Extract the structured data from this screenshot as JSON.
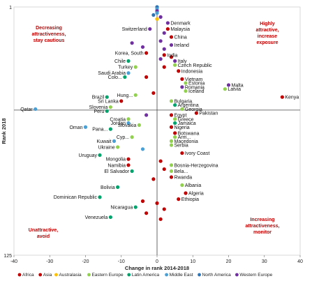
{
  "chart_data": {
    "type": "scatter",
    "xlabel": "Change in rank 2014-2018",
    "ylabel": "Rank 2018",
    "xlim": [
      -40,
      40
    ],
    "ylim": [
      1,
      125
    ],
    "y_inverted": true,
    "x_ticks": [
      -40,
      -30,
      -20,
      -10,
      0,
      10,
      20,
      30,
      40
    ],
    "y_ticks": [
      1,
      125
    ],
    "grid": false,
    "legend_position": "bottom",
    "colors": {
      "Africa": "#c00000",
      "Asia": "#c00000",
      "Australasia": "#ffc000",
      "Eastern Europe": "#92d050",
      "Latin America": "#00a36c",
      "Middle East": "#4a9fd5",
      "North America": "#2e75b6",
      "Western Europe": "#7030a0"
    },
    "legend": [
      {
        "region": "Africa",
        "text": "Africa"
      },
      {
        "region": "Asia",
        "text": "Asia"
      },
      {
        "region": "Australasia",
        "text": "Australasia"
      },
      {
        "region": "Eastern Europe",
        "text": "Eastern Europe"
      },
      {
        "region": "Latin America",
        "text": "Latin America"
      },
      {
        "region": "Middle East",
        "text": "Middle East"
      },
      {
        "region": "North America",
        "text": "North America"
      },
      {
        "region": "Western Europe",
        "text": "Western Europe"
      }
    ],
    "quadrant_labels": [
      {
        "lines": [
          "Decreasing",
          "attractiveness,",
          "stay cautious"
        ],
        "quadrant": "top-left"
      },
      {
        "lines": [
          "Highly",
          "attractive,",
          "increase",
          "exposure"
        ],
        "quadrant": "top-right"
      },
      {
        "lines": [
          "Unattractive,",
          "avoid"
        ],
        "quadrant": "bottom-left"
      },
      {
        "lines": [
          "Increasing",
          "attractiveness,",
          "monitor"
        ],
        "quadrant": "bottom-right"
      }
    ],
    "points": [
      {
        "x": 0,
        "y": 1,
        "region": "North America"
      },
      {
        "x": 0,
        "y": 2,
        "region": "Middle East"
      },
      {
        "x": 0,
        "y": 3,
        "region": "Western Europe"
      },
      {
        "x": 0,
        "y": 4,
        "region": "Middle East"
      },
      {
        "x": -1,
        "y": 5,
        "region": "North America"
      },
      {
        "x": 1,
        "y": 6,
        "region": "Western Europe"
      },
      {
        "x": 0,
        "y": 7,
        "region": "Australasia"
      },
      {
        "x": 3,
        "y": 9,
        "region": "Western Europe",
        "label": "Denmark"
      },
      {
        "x": 3,
        "y": 12,
        "region": "Asia",
        "label": "Malaysia"
      },
      {
        "x": -2,
        "y": 12,
        "region": "Western Europe",
        "label": "Switzerland"
      },
      {
        "x": 2,
        "y": 14,
        "region": "Western Europe"
      },
      {
        "x": 4,
        "y": 16,
        "region": "Asia",
        "label": "China"
      },
      {
        "x": 1,
        "y": 18,
        "region": "Western Europe"
      },
      {
        "x": 4,
        "y": 20,
        "region": "Western Europe",
        "label": "Ireland"
      },
      {
        "x": -7,
        "y": 19,
        "region": "Western Europe"
      },
      {
        "x": -4,
        "y": 21,
        "region": "Western Europe"
      },
      {
        "x": 2,
        "y": 22,
        "region": "Western Europe"
      },
      {
        "x": -3,
        "y": 24,
        "region": "Asia",
        "label": "Korea, South"
      },
      {
        "x": 2,
        "y": 25,
        "region": "Asia",
        "label": "India"
      },
      {
        "x": 4,
        "y": 26,
        "region": "Asia"
      },
      {
        "x": 1,
        "y": 27,
        "region": "Western Europe"
      },
      {
        "x": 5,
        "y": 28,
        "region": "Western Europe",
        "label": "Italy"
      },
      {
        "x": -8,
        "y": 28,
        "region": "Latin America",
        "label": "Chile"
      },
      {
        "x": 5,
        "y": 30,
        "region": "Eastern Europe",
        "label": "Czech Republic"
      },
      {
        "x": 2,
        "y": 31,
        "region": "Asia"
      },
      {
        "x": -6,
        "y": 31,
        "region": "Eastern Europe",
        "label": "Turkey"
      },
      {
        "x": 6,
        "y": 33,
        "region": "Asia",
        "label": "Indonesia"
      },
      {
        "x": -8,
        "y": 34,
        "region": "Middle East",
        "label": "Saudi Arabia"
      },
      {
        "x": -3,
        "y": 36,
        "region": "Asia"
      },
      {
        "x": -9,
        "y": 36,
        "region": "Latin America",
        "label": "Colo..."
      },
      {
        "x": 7,
        "y": 37,
        "region": "Asia",
        "label": "Vietnam"
      },
      {
        "x": 8,
        "y": 39,
        "region": "Eastern Europe",
        "label": "Estonia"
      },
      {
        "x": 20,
        "y": 40,
        "region": "Western Europe",
        "label": "Malta"
      },
      {
        "x": 7,
        "y": 41,
        "region": "Western Europe",
        "label": "Romania"
      },
      {
        "x": 19,
        "y": 42,
        "region": "Eastern Europe",
        "label": "Latvia"
      },
      {
        "x": 8,
        "y": 43,
        "region": "Eastern Europe",
        "label": "Iceland"
      },
      {
        "x": -1,
        "y": 44,
        "region": "Asia"
      },
      {
        "x": -6,
        "y": 45,
        "region": "Eastern Europe",
        "label": "Hung..."
      },
      {
        "x": 35,
        "y": 46,
        "region": "Africa",
        "label": "Kenya"
      },
      {
        "x": -14,
        "y": 46,
        "region": "Latin America",
        "label": "Brazil"
      },
      {
        "x": 4,
        "y": 48,
        "region": "Eastern Europe",
        "label": "Bulgaria"
      },
      {
        "x": -10,
        "y": 48,
        "region": "Asia",
        "label": "Sri Lanka"
      },
      {
        "x": 5,
        "y": 50,
        "region": "Latin America",
        "label": "Argentina"
      },
      {
        "x": -13,
        "y": 51,
        "region": "Eastern Europe",
        "label": "Slovenia"
      },
      {
        "x": -34,
        "y": 52,
        "region": "Middle East",
        "label": "Qatar"
      },
      {
        "x": 7,
        "y": 52,
        "region": "Eastern Europe",
        "label": "Georgia"
      },
      {
        "x": -14,
        "y": 53,
        "region": "Latin America",
        "label": "Peru"
      },
      {
        "x": 11,
        "y": 54,
        "region": "Asia",
        "label": "Pakistan"
      },
      {
        "x": 4,
        "y": 55,
        "region": "Africa",
        "label": "Egypt"
      },
      {
        "x": -3,
        "y": 55,
        "region": "Western Europe"
      },
      {
        "x": 5,
        "y": 57,
        "region": "Eastern Europe",
        "label": "Greece"
      },
      {
        "x": -8,
        "y": 57,
        "region": "Eastern Europe",
        "label": "Croatia"
      },
      {
        "x": 5,
        "y": 59,
        "region": "Latin America",
        "label": "Jamaica"
      },
      {
        "x": -8,
        "y": 59,
        "region": "Middle East",
        "label": "Jordan"
      },
      {
        "x": -5,
        "y": 60,
        "region": "Eastern Europe",
        "label": "Slovakia"
      },
      {
        "x": 4,
        "y": 61,
        "region": "Africa",
        "label": "Nigeria"
      },
      {
        "x": -20,
        "y": 61,
        "region": "Middle East",
        "label": "Oman"
      },
      {
        "x": -13,
        "y": 62,
        "region": "Latin America",
        "label": "Pana..."
      },
      {
        "x": 5,
        "y": 64,
        "region": "Africa",
        "label": "Botswana"
      },
      {
        "x": 5,
        "y": 66,
        "region": "Eastern Europe",
        "label": "Arm..."
      },
      {
        "x": -7,
        "y": 66,
        "region": "Eastern Europe",
        "label": "Cyp..."
      },
      {
        "x": 4,
        "y": 68,
        "region": "Eastern Europe",
        "label": "Macedonia"
      },
      {
        "x": -12,
        "y": 68,
        "region": "Middle East",
        "label": "Kuwait"
      },
      {
        "x": 4,
        "y": 70,
        "region": "Eastern Europe",
        "label": "Serbia"
      },
      {
        "x": -11,
        "y": 71,
        "region": "Eastern Europe",
        "label": "Ukraine"
      },
      {
        "x": -4,
        "y": 72,
        "region": "Middle East"
      },
      {
        "x": 7,
        "y": 74,
        "region": "Africa",
        "label": "Ivory Coast"
      },
      {
        "x": -16,
        "y": 75,
        "region": "Latin America",
        "label": "Uruguay"
      },
      {
        "x": -8,
        "y": 77,
        "region": "Asia",
        "label": "Mongolia"
      },
      {
        "x": 1,
        "y": 78,
        "region": "Africa"
      },
      {
        "x": -8,
        "y": 80,
        "region": "Africa",
        "label": "Namibia"
      },
      {
        "x": 4,
        "y": 80,
        "region": "Eastern Europe",
        "label": "Bosnia-Herzegovina"
      },
      {
        "x": 2,
        "y": 82,
        "region": "Africa"
      },
      {
        "x": -7,
        "y": 83,
        "region": "Latin America",
        "label": "El Salvador"
      },
      {
        "x": 4,
        "y": 83,
        "region": "Eastern Europe",
        "label": "Bela..."
      },
      {
        "x": 4,
        "y": 86,
        "region": "Africa",
        "label": "Rwanda"
      },
      {
        "x": -1,
        "y": 87,
        "region": "Africa"
      },
      {
        "x": 7,
        "y": 90,
        "region": "Eastern Europe",
        "label": "Albania"
      },
      {
        "x": -11,
        "y": 91,
        "region": "Latin America",
        "label": "Bolivia"
      },
      {
        "x": 8,
        "y": 94,
        "region": "Africa",
        "label": "Algeria"
      },
      {
        "x": -16,
        "y": 96,
        "region": "Latin America",
        "label": "Dominican Republic"
      },
      {
        "x": 6,
        "y": 97,
        "region": "Africa",
        "label": "Ethiopia"
      },
      {
        "x": -4,
        "y": 98,
        "region": "Africa"
      },
      {
        "x": -6,
        "y": 101,
        "region": "Latin America",
        "label": "Nicaragua"
      },
      {
        "x": -3,
        "y": 104,
        "region": "Africa"
      },
      {
        "x": -13,
        "y": 106,
        "region": "Latin America",
        "label": "Venezuela"
      },
      {
        "x": 1,
        "y": 107,
        "region": "Africa"
      },
      {
        "x": 0,
        "y": 99,
        "region": "Africa"
      },
      {
        "x": 2,
        "y": 102,
        "region": "Africa"
      }
    ]
  }
}
